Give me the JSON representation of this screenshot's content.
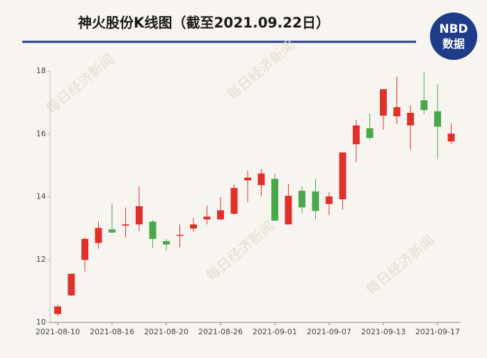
{
  "chart_data": {
    "type": "candlestick",
    "title": "神火股份K线图（截至2021.09.22日）",
    "categories": [
      "2021-08-10",
      null,
      null,
      null,
      "2021-08-16",
      null,
      null,
      null,
      "2021-08-20",
      null,
      null,
      null,
      "2021-08-26",
      null,
      null,
      null,
      "2021-09-01",
      null,
      null,
      null,
      "2021-09-07",
      null,
      null,
      null,
      "2021-09-13",
      null,
      null,
      null,
      "2021-09-17",
      null
    ],
    "open": [
      10.27,
      10.86,
      11.99,
      12.53,
      12.96,
      13.08,
      13.12,
      13.21,
      12.59,
      12.76,
      12.99,
      13.28,
      13.28,
      13.46,
      14.52,
      14.37,
      14.57,
      13.12,
      14.19,
      14.17,
      13.77,
      13.92,
      15.67,
      16.18,
      16.58,
      16.56,
      16.27,
      17.07,
      16.72,
      15.76
    ],
    "high": [
      10.58,
      11.55,
      12.7,
      13.21,
      13.79,
      13.66,
      14.32,
      13.26,
      12.66,
      13.12,
      13.32,
      13.72,
      13.99,
      14.39,
      14.83,
      14.88,
      14.74,
      14.41,
      14.32,
      14.57,
      14.14,
      15.41,
      16.45,
      16.65,
      17.42,
      17.82,
      16.91,
      17.96,
      17.58,
      16.34
    ],
    "low": [
      10.22,
      10.84,
      11.62,
      12.35,
      12.86,
      12.7,
      12.9,
      12.37,
      12.28,
      12.39,
      12.88,
      13.12,
      13.26,
      13.43,
      13.83,
      14.01,
      13.24,
      13.12,
      13.48,
      13.28,
      13.41,
      13.59,
      15.1,
      15.81,
      16.14,
      16.32,
      15.5,
      16.63,
      15.19,
      15.67
    ],
    "close": [
      10.51,
      11.55,
      12.66,
      13.01,
      12.86,
      13.12,
      13.7,
      12.66,
      12.48,
      12.79,
      13.12,
      13.37,
      13.57,
      14.28,
      14.61,
      14.74,
      13.24,
      14.03,
      13.66,
      13.55,
      14.01,
      15.41,
      16.27,
      15.87,
      17.42,
      16.85,
      16.67,
      16.76,
      16.23,
      16.01
    ],
    "up_color": "#e0302a",
    "down_color": "#4aa84a",
    "ylim": [
      10,
      18
    ],
    "yticks": [
      10,
      12,
      14,
      16,
      18
    ],
    "watermark": "每日经济新闻"
  },
  "logo": {
    "top": "NBD",
    "bottom": "数据"
  }
}
